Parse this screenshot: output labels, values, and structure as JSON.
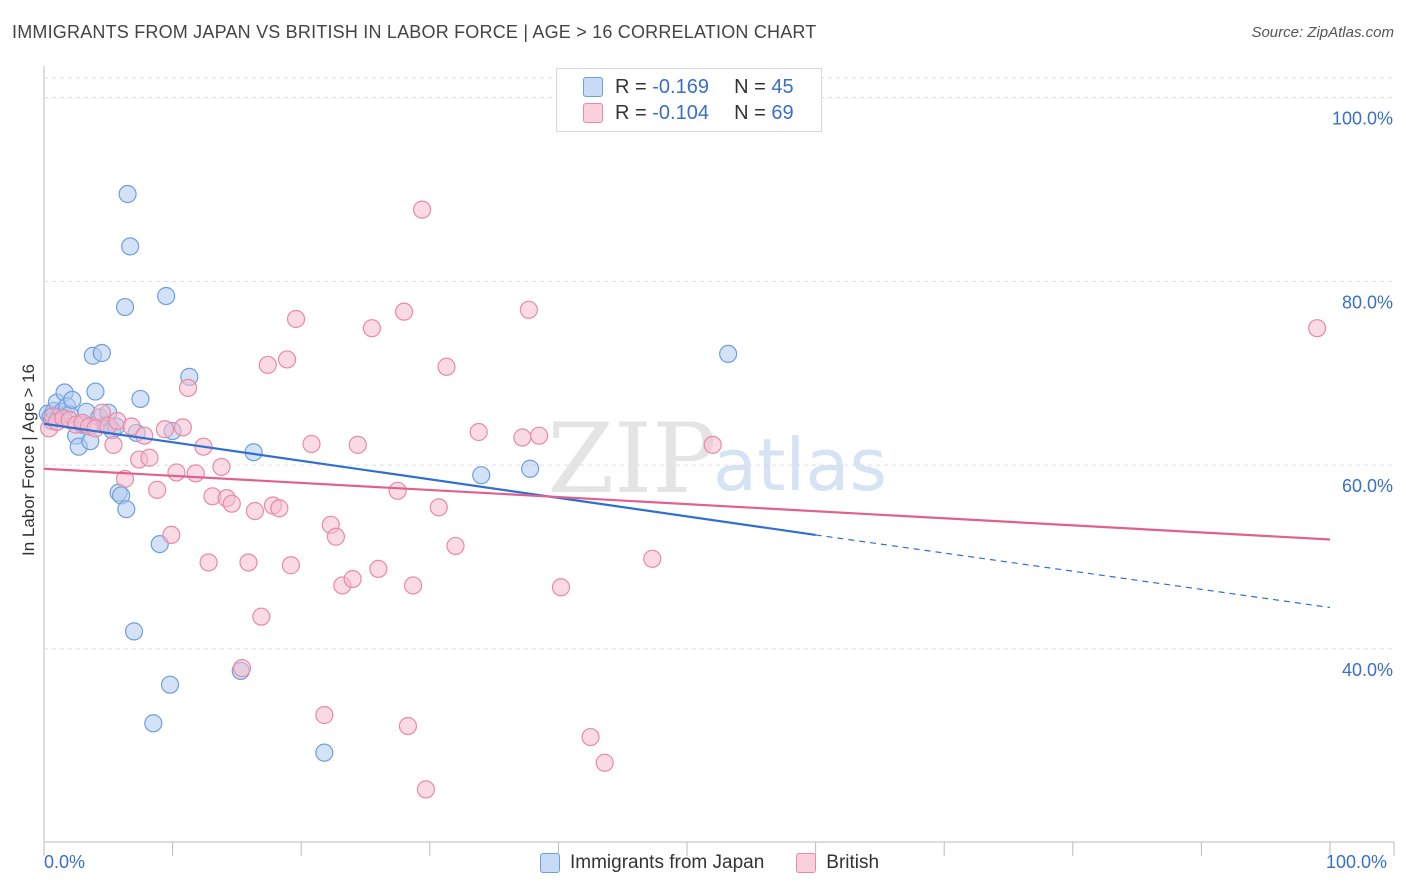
{
  "header": {
    "title": "IMMIGRANTS FROM JAPAN VS BRITISH IN LABOR FORCE | AGE > 16 CORRELATION CHART",
    "source": "Source: ZipAtlas.com"
  },
  "legend": {
    "rows": [
      {
        "r_label": "R =",
        "r_value": "-0.169",
        "n_label": "N =",
        "n_value": "45"
      },
      {
        "r_label": "R =",
        "r_value": "-0.104",
        "n_label": "N =",
        "n_value": "69"
      }
    ],
    "bottom": [
      "Immigrants from Japan",
      "British"
    ]
  },
  "watermark": {
    "part1": "ZIP",
    "part2": "atlas"
  },
  "colors": {
    "blue_fill": "#aecbf0",
    "blue_stroke": "#6f9fdc",
    "blue_line": "#2f6fd0",
    "pink_fill": "#f6bccd",
    "pink_stroke": "#e88aa7",
    "pink_line": "#e06090",
    "tick_text": "#3a6fc6",
    "grid": "#dddddd"
  },
  "chart_data": {
    "type": "scatter",
    "title": "IMMIGRANTS FROM JAPAN VS BRITISH IN LABOR FORCE | AGE > 16 CORRELATION CHART",
    "ylabel": "In Labor Force | Age > 16",
    "xlabel": "",
    "x_tick_labels": [
      "0.0%",
      "100.0%"
    ],
    "y_tick_labels": [
      "100.0%",
      "80.0%",
      "60.0%",
      "40.0%"
    ],
    "y_ticks": [
      100,
      80,
      60,
      40
    ],
    "xlim": [
      0,
      100
    ],
    "ylim": [
      20.5,
      103
    ],
    "grid": true,
    "legend_position": "top-center",
    "series": [
      {
        "name": "Immigrants from Japan",
        "color": "blue",
        "points": [
          [
            0.3,
            65.6
          ],
          [
            0.5,
            65.2
          ],
          [
            0.6,
            64.8
          ],
          [
            0.8,
            65.9
          ],
          [
            1.0,
            66.8
          ],
          [
            1.2,
            65.3
          ],
          [
            1.4,
            65.8
          ],
          [
            1.6,
            67.9
          ],
          [
            1.8,
            66.4
          ],
          [
            2.0,
            65.5
          ],
          [
            2.2,
            67.1
          ],
          [
            2.5,
            63.2
          ],
          [
            2.7,
            62.0
          ],
          [
            3.0,
            64.4
          ],
          [
            3.3,
            65.8
          ],
          [
            3.6,
            62.6
          ],
          [
            3.8,
            71.9
          ],
          [
            4.0,
            68.0
          ],
          [
            4.3,
            65.2
          ],
          [
            4.5,
            72.2
          ],
          [
            4.8,
            64.4
          ],
          [
            5.0,
            65.7
          ],
          [
            5.3,
            63.8
          ],
          [
            5.6,
            64.2
          ],
          [
            5.8,
            57.0
          ],
          [
            6.0,
            56.7
          ],
          [
            6.3,
            77.2
          ],
          [
            6.4,
            55.2
          ],
          [
            6.5,
            89.5
          ],
          [
            6.7,
            83.8
          ],
          [
            7.0,
            41.9
          ],
          [
            7.5,
            67.2
          ],
          [
            8.5,
            31.9
          ],
          [
            9.0,
            51.4
          ],
          [
            9.5,
            78.4
          ],
          [
            9.8,
            36.1
          ],
          [
            10.0,
            63.7
          ],
          [
            11.3,
            69.6
          ],
          [
            15.3,
            37.6
          ],
          [
            16.3,
            61.4
          ],
          [
            21.8,
            28.7
          ],
          [
            34.0,
            58.9
          ],
          [
            37.8,
            59.6
          ],
          [
            53.2,
            72.1
          ],
          [
            7.2,
            63.5
          ]
        ]
      },
      {
        "name": "British",
        "color": "pink",
        "points": [
          [
            0.4,
            64.0
          ],
          [
            0.7,
            65.3
          ],
          [
            1.0,
            64.7
          ],
          [
            1.5,
            65.1
          ],
          [
            2.0,
            64.9
          ],
          [
            2.5,
            64.4
          ],
          [
            3.0,
            64.6
          ],
          [
            3.5,
            64.2
          ],
          [
            4.0,
            64.0
          ],
          [
            4.5,
            65.7
          ],
          [
            5.0,
            64.3
          ],
          [
            5.4,
            62.2
          ],
          [
            5.7,
            64.8
          ],
          [
            6.3,
            58.5
          ],
          [
            6.8,
            64.2
          ],
          [
            7.4,
            60.6
          ],
          [
            7.8,
            63.2
          ],
          [
            8.2,
            60.8
          ],
          [
            8.8,
            57.3
          ],
          [
            9.4,
            63.9
          ],
          [
            9.9,
            52.4
          ],
          [
            10.3,
            59.2
          ],
          [
            10.8,
            64.1
          ],
          [
            11.2,
            68.4
          ],
          [
            11.8,
            59.1
          ],
          [
            12.4,
            62.0
          ],
          [
            12.8,
            49.4
          ],
          [
            13.1,
            56.6
          ],
          [
            13.8,
            59.8
          ],
          [
            14.2,
            56.4
          ],
          [
            14.6,
            55.8
          ],
          [
            15.4,
            37.9
          ],
          [
            15.9,
            49.4
          ],
          [
            16.4,
            55.0
          ],
          [
            16.9,
            43.5
          ],
          [
            17.4,
            70.9
          ],
          [
            17.8,
            55.6
          ],
          [
            18.3,
            55.3
          ],
          [
            18.9,
            71.5
          ],
          [
            19.2,
            49.1
          ],
          [
            19.6,
            75.9
          ],
          [
            20.8,
            62.3
          ],
          [
            21.8,
            32.8
          ],
          [
            22.3,
            53.5
          ],
          [
            22.7,
            52.2
          ],
          [
            23.2,
            46.9
          ],
          [
            24.0,
            47.6
          ],
          [
            24.4,
            62.2
          ],
          [
            25.5,
            74.9
          ],
          [
            26.0,
            48.7
          ],
          [
            27.5,
            57.2
          ],
          [
            28.0,
            76.7
          ],
          [
            28.3,
            31.6
          ],
          [
            28.7,
            46.9
          ],
          [
            29.4,
            87.8
          ],
          [
            29.7,
            24.7
          ],
          [
            30.7,
            55.4
          ],
          [
            31.3,
            70.7
          ],
          [
            32.0,
            51.2
          ],
          [
            33.8,
            63.6
          ],
          [
            37.2,
            63.0
          ],
          [
            37.7,
            76.9
          ],
          [
            38.5,
            63.2
          ],
          [
            40.2,
            46.7
          ],
          [
            42.5,
            30.4
          ],
          [
            43.6,
            27.6
          ],
          [
            47.3,
            49.8
          ],
          [
            52.0,
            62.2
          ],
          [
            99.0,
            74.9
          ]
        ]
      }
    ],
    "trend_lines": [
      {
        "series": "Immigrants from Japan",
        "x": [
          0,
          60
        ],
        "y": [
          64.5,
          52.4
        ],
        "dashed_extension": {
          "x": [
            60,
            100
          ],
          "y": [
            52.4,
            44.5
          ]
        }
      },
      {
        "series": "British",
        "x": [
          0,
          100
        ],
        "y": [
          59.6,
          51.9
        ]
      }
    ]
  }
}
